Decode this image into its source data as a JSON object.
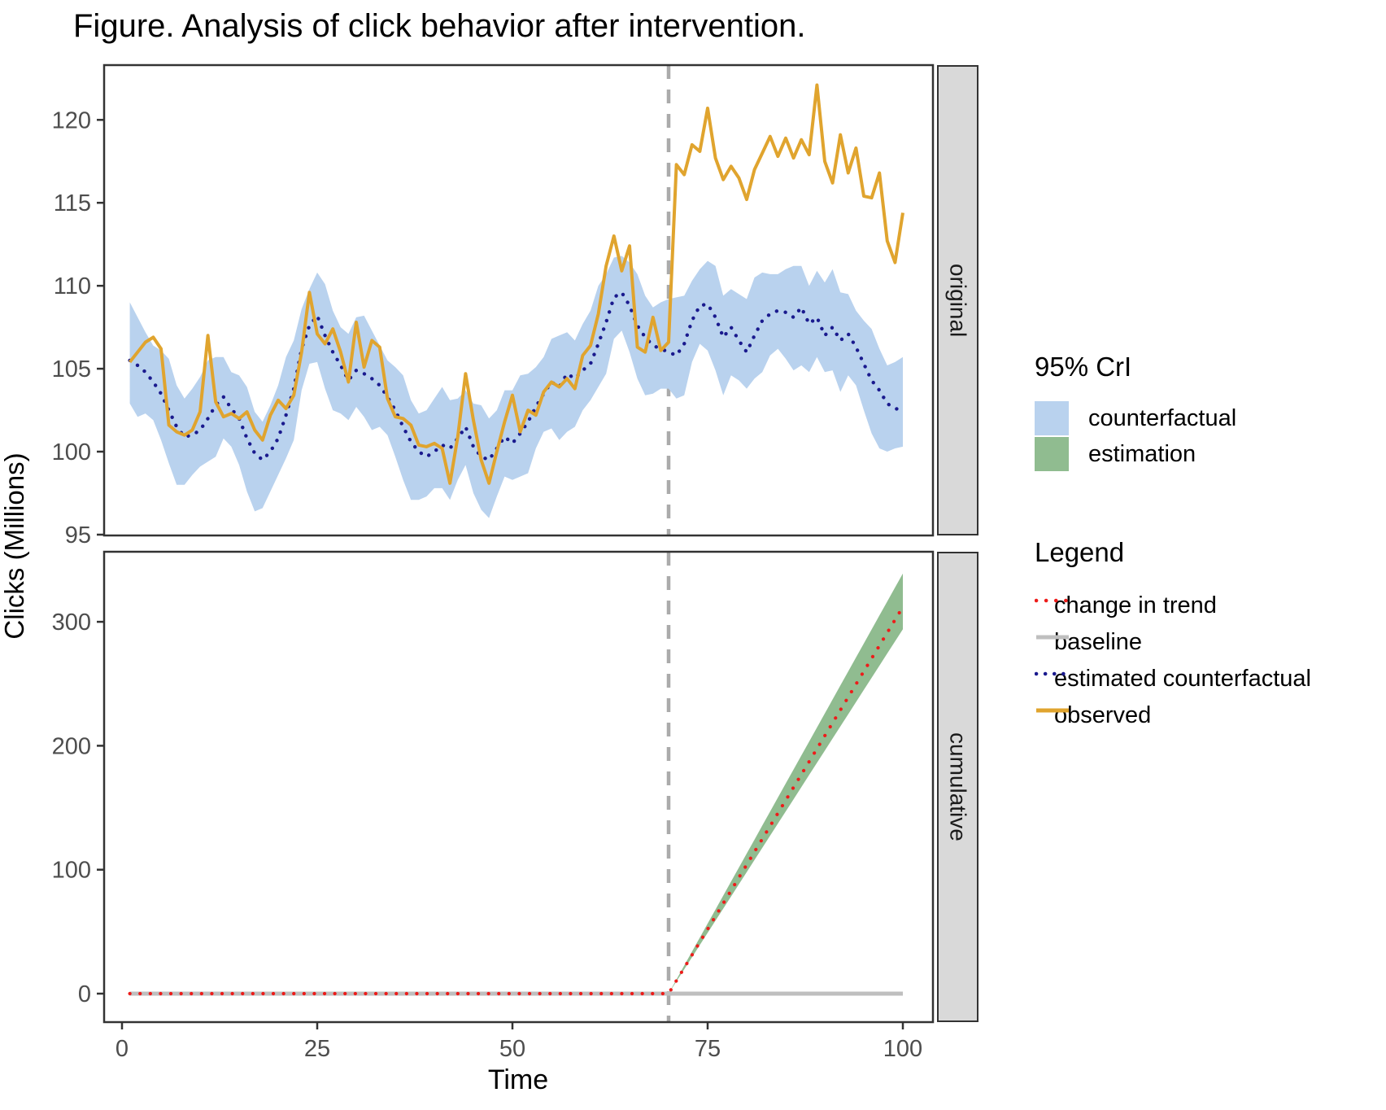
{
  "title": "Figure. Analysis of click behavior after intervention.",
  "axes": {
    "x_label": "Time",
    "y_label": "Clicks (Millions)",
    "x_ticks": [
      0,
      25,
      50,
      75,
      100
    ]
  },
  "panels": [
    {
      "strip": "original",
      "y_ticks": [
        95,
        100,
        105,
        110,
        115,
        120
      ],
      "ylim": [
        94.95,
        123.3
      ]
    },
    {
      "strip": "cumulative",
      "y_ticks": [
        0,
        100,
        200,
        300
      ],
      "ylim": [
        -23.0,
        356.5
      ]
    }
  ],
  "legends": {
    "ci": {
      "title": "95% CrI",
      "items": [
        {
          "label": "counterfactual",
          "swatch_color": "#b9d2ee"
        },
        {
          "label": "estimation",
          "swatch_color": "#90bc90"
        }
      ]
    },
    "lines": {
      "title": "Legend",
      "items": [
        {
          "label": "change in trend",
          "color": "#ed1c1a",
          "style": "dotted"
        },
        {
          "label": "baseline",
          "color": "#bfbfbf",
          "style": "solid"
        },
        {
          "label": "estimated counterfactual",
          "color": "#1a1a8e",
          "style": "dotted"
        },
        {
          "label": "observed",
          "color": "#e0a42e",
          "style": "solid"
        }
      ]
    }
  },
  "colors": {
    "observed": "#e0a42e",
    "counterfactual_line": "#1a1a8e",
    "counterfactual_ribbon": "#b9d2ee",
    "estimation_ribbon": "#90bc90",
    "trend_line": "#ed1c1a",
    "baseline": "#bfbfbf",
    "intervention_line": "#ababab",
    "panel_border": "#333333",
    "strip_bg": "#d9d9d9",
    "tick_text": "#4d4d4d"
  },
  "intervention_x": 70,
  "chart_data": [
    {
      "type": "line",
      "panel": "original",
      "title": "",
      "xlabel": "Time",
      "ylabel": "Clicks (Millions)",
      "xlim": [
        -2.29,
        103.85
      ],
      "ylim": [
        94.95,
        123.3
      ],
      "grid": false,
      "legend_position": "right",
      "x_start": 1,
      "series": [
        {
          "name": "observed",
          "values": [
            105.4,
            106.0,
            106.6,
            106.9,
            106.2,
            101.6,
            101.2,
            101.0,
            101.3,
            102.4,
            107.0,
            103.0,
            102.1,
            102.3,
            102.0,
            102.4,
            101.3,
            100.7,
            102.2,
            103.1,
            102.6,
            103.4,
            106.0,
            109.6,
            107.1,
            106.5,
            107.4,
            106.0,
            104.2,
            107.8,
            105.1,
            106.7,
            106.3,
            103.2,
            102.1,
            102.0,
            101.6,
            100.4,
            100.3,
            100.5,
            100.2,
            98.1,
            100.9,
            104.7,
            101.9,
            99.5,
            98.1,
            100.0,
            101.8,
            103.4,
            101.2,
            102.5,
            102.2,
            103.6,
            104.2,
            103.9,
            104.4,
            103.8,
            105.8,
            106.4,
            108.3,
            111.2,
            113.0,
            110.9,
            112.4,
            106.3,
            106.0,
            108.1,
            106.1,
            106.6,
            117.3,
            116.7,
            118.5,
            118.1,
            120.7,
            117.7,
            116.4,
            117.2,
            116.5,
            115.2,
            117.0,
            118.0,
            119.0,
            117.8,
            118.9,
            117.7,
            118.8,
            117.9,
            122.1,
            117.5,
            116.2,
            119.1,
            116.8,
            118.3,
            115.4,
            115.3,
            116.8,
            112.7,
            111.4,
            114.4
          ]
        },
        {
          "name": "estimated counterfactual",
          "values": [
            105.5,
            105.2,
            104.8,
            104.2,
            103.5,
            102.5,
            101.5,
            100.9,
            101.0,
            101.3,
            102.0,
            102.8,
            103.3,
            102.6,
            102.0,
            100.8,
            99.9,
            99.5,
            100.0,
            100.8,
            102.2,
            103.8,
            106.2,
            107.6,
            108.2,
            107.0,
            106.0,
            105.2,
            104.3,
            104.9,
            104.7,
            104.4,
            104.0,
            103.3,
            102.5,
            101.5,
            100.6,
            100.0,
            99.7,
            100.0,
            100.4,
            100.2,
            100.8,
            101.5,
            100.3,
            99.7,
            99.5,
            100.2,
            100.9,
            100.5,
            101.1,
            101.8,
            102.7,
            103.5,
            104.2,
            103.9,
            104.7,
            104.4,
            104.9,
            105.3,
            106.5,
            107.8,
            109.3,
            109.6,
            108.8,
            107.6,
            106.9,
            106.4,
            106.2,
            106.0,
            105.8,
            106.5,
            107.9,
            108.8,
            108.9,
            108.1,
            106.9,
            107.5,
            106.7,
            106.0,
            107.0,
            107.9,
            108.3,
            108.5,
            108.4,
            108.1,
            108.7,
            107.7,
            108.1,
            107.0,
            107.5,
            106.7,
            107.1,
            106.3,
            105.3,
            104.3,
            103.7,
            102.9,
            102.6,
            102.5
          ]
        },
        {
          "name": "counterfactual 95% CrI upper",
          "values": [
            109.0,
            108.1,
            107.2,
            106.4,
            106.1,
            105.6,
            104.0,
            103.2,
            103.8,
            104.5,
            105.5,
            105.7,
            105.7,
            104.8,
            104.6,
            103.9,
            102.4,
            101.8,
            102.8,
            104.0,
            105.7,
            106.7,
            108.6,
            109.8,
            110.8,
            110.1,
            108.5,
            107.5,
            107.1,
            108.1,
            108.2,
            107.3,
            106.4,
            105.5,
            105.1,
            104.6,
            103.1,
            102.3,
            102.5,
            103.2,
            103.9,
            103.1,
            103.2,
            103.7,
            102.9,
            102.8,
            102.0,
            102.5,
            103.7,
            103.7,
            104.6,
            104.7,
            105.1,
            105.7,
            106.8,
            107.0,
            107.2,
            106.7,
            107.7,
            108.5,
            110.0,
            110.7,
            111.7,
            111.8,
            111.4,
            110.7,
            109.4,
            108.7,
            109.0,
            109.2,
            109.3,
            109.4,
            110.3,
            111.0,
            111.5,
            111.2,
            109.4,
            109.8,
            109.5,
            109.2,
            110.5,
            110.8,
            110.7,
            110.7,
            111.0,
            111.2,
            111.2,
            110.0,
            110.9,
            110.2,
            111.0,
            109.6,
            109.5,
            108.5,
            107.9,
            107.4,
            106.2,
            105.2,
            105.4,
            105.7
          ]
        },
        {
          "name": "counterfactual 95% CrI lower",
          "values": [
            102.9,
            102.1,
            102.3,
            101.9,
            100.7,
            99.3,
            98.0,
            98.0,
            98.6,
            99.1,
            99.4,
            99.7,
            100.8,
            100.3,
            99.2,
            97.6,
            96.4,
            96.6,
            97.6,
            98.6,
            99.6,
            100.7,
            103.7,
            105.3,
            105.4,
            103.8,
            102.5,
            102.3,
            101.9,
            102.7,
            102.1,
            101.3,
            101.5,
            101.0,
            99.7,
            98.3,
            97.1,
            97.1,
            97.3,
            97.8,
            97.8,
            97.1,
            98.3,
            99.2,
            97.5,
            96.5,
            96.0,
            97.3,
            98.5,
            98.3,
            98.5,
            98.7,
            100.2,
            101.2,
            101.4,
            100.7,
            101.2,
            101.5,
            102.5,
            103.1,
            103.9,
            104.7,
            106.8,
            107.3,
            106.0,
            104.4,
            103.4,
            103.5,
            103.8,
            103.8,
            103.2,
            103.4,
            105.4,
            106.5,
            106.1,
            104.9,
            103.4,
            104.6,
            104.3,
            103.8,
            104.4,
            104.8,
            105.8,
            106.2,
            105.6,
            104.9,
            105.2,
            104.8,
            105.7,
            104.8,
            104.9,
            103.6,
            104.6,
            104.0,
            102.5,
            101.1,
            100.2,
            100.0,
            100.2,
            100.3
          ]
        }
      ]
    },
    {
      "type": "line",
      "panel": "cumulative",
      "title": "",
      "xlabel": "Time",
      "ylabel": "Clicks (Millions)",
      "xlim": [
        -2.29,
        103.85
      ],
      "ylim": [
        -23.0,
        356.5
      ],
      "grid": false,
      "baseline": {
        "name": "baseline",
        "x": [
          1,
          100
        ],
        "y": [
          0,
          0
        ]
      },
      "trend_flat_until": 70,
      "post": {
        "x": [
          70,
          71,
          72,
          73,
          74,
          75,
          76,
          77,
          78,
          79,
          80,
          81,
          82,
          83,
          84,
          85,
          86,
          87,
          88,
          89,
          90,
          91,
          92,
          93,
          94,
          95,
          96,
          97,
          98,
          99,
          100
        ],
        "mean": [
          0,
          10.4,
          20.8,
          31.2,
          41.6,
          52.0,
          62.4,
          72.8,
          83.2,
          93.6,
          104.0,
          114.4,
          124.8,
          135.2,
          145.6,
          156.0,
          166.4,
          176.8,
          187.2,
          197.6,
          208.0,
          218.4,
          228.8,
          239.2,
          249.6,
          260.0,
          270.4,
          280.8,
          291.2,
          301.6,
          312.0
        ],
        "lower": [
          0,
          9.8,
          19.6,
          29.4,
          39.2,
          49.0,
          58.8,
          68.6,
          78.4,
          88.2,
          98.0,
          107.8,
          117.6,
          127.4,
          137.2,
          147.0,
          156.8,
          166.6,
          176.4,
          186.2,
          196.0,
          205.8,
          215.6,
          225.4,
          235.2,
          245.0,
          254.8,
          264.6,
          274.4,
          284.2,
          294.0
        ],
        "upper": [
          0,
          11.3,
          22.6,
          33.9,
          45.2,
          56.5,
          67.8,
          79.1,
          90.4,
          101.7,
          113.0,
          124.3,
          135.6,
          146.9,
          158.2,
          169.5,
          180.8,
          192.1,
          203.4,
          214.7,
          226.0,
          237.3,
          248.6,
          259.9,
          271.2,
          282.5,
          293.8,
          305.1,
          316.4,
          327.7,
          339.0
        ]
      }
    }
  ]
}
